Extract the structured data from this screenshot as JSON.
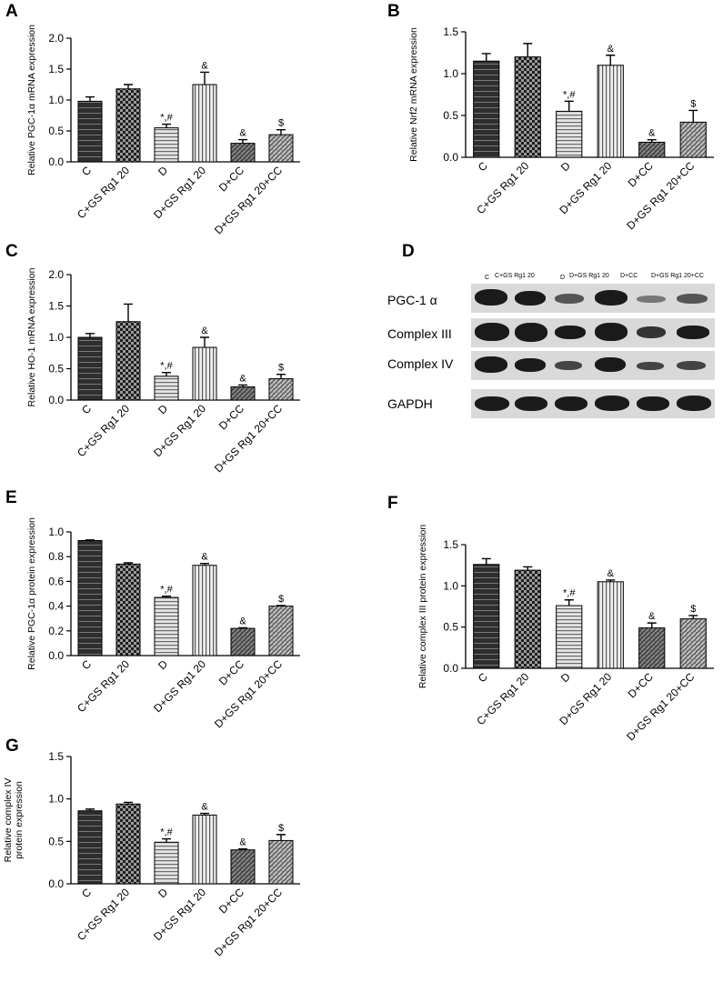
{
  "patterns": {
    "C": "hstripe-dark",
    "C+GS Rg1 20": "checker",
    "D": "hstripe-light",
    "D+GS Rg1 20": "vstripe",
    "D+CC": "diag-dark",
    "D+GS Rg1 20+CC": "diag-light"
  },
  "colors": {
    "bar_dark": "#3a3a3a",
    "bar_mid": "#8a8a8a",
    "bar_light": "#c8c8c8",
    "axis": "#000000"
  },
  "chart_data": [
    {
      "id": "A",
      "panel_label": "A",
      "type": "bar",
      "ylabel": "Relative PGC-1α mRNA expression",
      "ylim": [
        0,
        2.0
      ],
      "yticks": [
        "0.0",
        "0.5",
        "1.0",
        "1.5",
        "2.0"
      ],
      "categories": [
        "C",
        "C+GS Rg1 20",
        "D",
        "D+GS Rg1 20",
        "D+CC",
        "D+GS Rg1 20+CC"
      ],
      "values": [
        0.98,
        1.18,
        0.55,
        1.25,
        0.3,
        0.44
      ],
      "errors": [
        0.07,
        0.07,
        0.06,
        0.2,
        0.06,
        0.08
      ],
      "annotations": [
        "",
        "",
        "*,#",
        "&",
        "&",
        "$"
      ]
    },
    {
      "id": "B",
      "panel_label": "B",
      "type": "bar",
      "ylabel": "Relative Nrf2 mRNA expression",
      "ylim": [
        0,
        1.5
      ],
      "yticks": [
        "0.0",
        "0.5",
        "1.0",
        "1.5"
      ],
      "categories": [
        "C",
        "C+GS Rg1 20",
        "D",
        "D+GS Rg1 20",
        "D+CC",
        "D+GS Rg1 20+CC"
      ],
      "values": [
        1.15,
        1.2,
        0.55,
        1.1,
        0.18,
        0.42
      ],
      "errors": [
        0.09,
        0.16,
        0.12,
        0.12,
        0.03,
        0.14
      ],
      "annotations": [
        "",
        "",
        "*,#",
        "&",
        "&",
        "$"
      ]
    },
    {
      "id": "C",
      "panel_label": "C",
      "type": "bar",
      "ylabel": "Relative HO-1 mRNA expression",
      "ylim": [
        0,
        2.0
      ],
      "yticks": [
        "0.0",
        "0.5",
        "1.0",
        "1.5",
        "2.0"
      ],
      "categories": [
        "C",
        "C+GS Rg1 20",
        "D",
        "D+GS Rg1 20",
        "D+CC",
        "D+GS Rg1 20+CC"
      ],
      "values": [
        1.0,
        1.25,
        0.38,
        0.84,
        0.21,
        0.34
      ],
      "errors": [
        0.06,
        0.28,
        0.06,
        0.16,
        0.03,
        0.07
      ],
      "annotations": [
        "",
        "",
        "*,#",
        "&",
        "&",
        "$"
      ]
    },
    {
      "id": "E",
      "panel_label": "E",
      "type": "bar",
      "ylabel": "Relative PGC-1α protein expression",
      "ylim": [
        0,
        1.0
      ],
      "yticks": [
        "0.0",
        "0.2",
        "0.4",
        "0.6",
        "0.8",
        "1.0"
      ],
      "categories": [
        "C",
        "C+GS Rg1 20",
        "D",
        "D+GS Rg1 20",
        "D+CC",
        "D+GS Rg1 20+CC"
      ],
      "values": [
        0.93,
        0.74,
        0.47,
        0.73,
        0.22,
        0.4
      ],
      "errors": [
        0.005,
        0.01,
        0.01,
        0.015,
        0.005,
        0.005
      ],
      "annotations": [
        "",
        "",
        "*,#",
        "&",
        "&",
        "$"
      ]
    },
    {
      "id": "F",
      "panel_label": "F",
      "type": "bar",
      "ylabel": "Relative complex III protein expression",
      "ylim": [
        0,
        1.5
      ],
      "yticks": [
        "0.0",
        "0.5",
        "1.0",
        "1.5"
      ],
      "categories": [
        "C",
        "C+GS Rg1 20",
        "D",
        "D+GS Rg1 20",
        "D+CC",
        "D+GS Rg1 20+CC"
      ],
      "values": [
        1.26,
        1.19,
        0.76,
        1.05,
        0.49,
        0.6
      ],
      "errors": [
        0.07,
        0.04,
        0.07,
        0.02,
        0.06,
        0.04
      ],
      "annotations": [
        "",
        "",
        "*,#",
        "&",
        "&",
        "$"
      ]
    },
    {
      "id": "G",
      "panel_label": "G",
      "type": "bar",
      "ylabel": [
        "Relative complex IV",
        "protein expression"
      ],
      "ylim": [
        0,
        1.5
      ],
      "yticks": [
        "0.0",
        "0.5",
        "1.0",
        "1.5"
      ],
      "categories": [
        "C",
        "C+GS Rg1 20",
        "D",
        "D+GS Rg1 20",
        "D+CC",
        "D+GS Rg1 20+CC"
      ],
      "values": [
        0.86,
        0.94,
        0.49,
        0.81,
        0.4,
        0.51
      ],
      "errors": [
        0.02,
        0.02,
        0.04,
        0.02,
        0.01,
        0.07
      ],
      "annotations": [
        "",
        "",
        "*,#",
        "&",
        "&",
        "$"
      ]
    }
  ],
  "western_blot": {
    "panel_label": "D",
    "lanes": [
      "C",
      "C+GS Rg1 20",
      "D",
      "D+GS Rg1 20",
      "D+CC",
      "D+GS Rg1 20+CC"
    ],
    "rows": [
      "PGC-1 α",
      "Complex III",
      "Complex IV",
      "GAPDH"
    ]
  }
}
